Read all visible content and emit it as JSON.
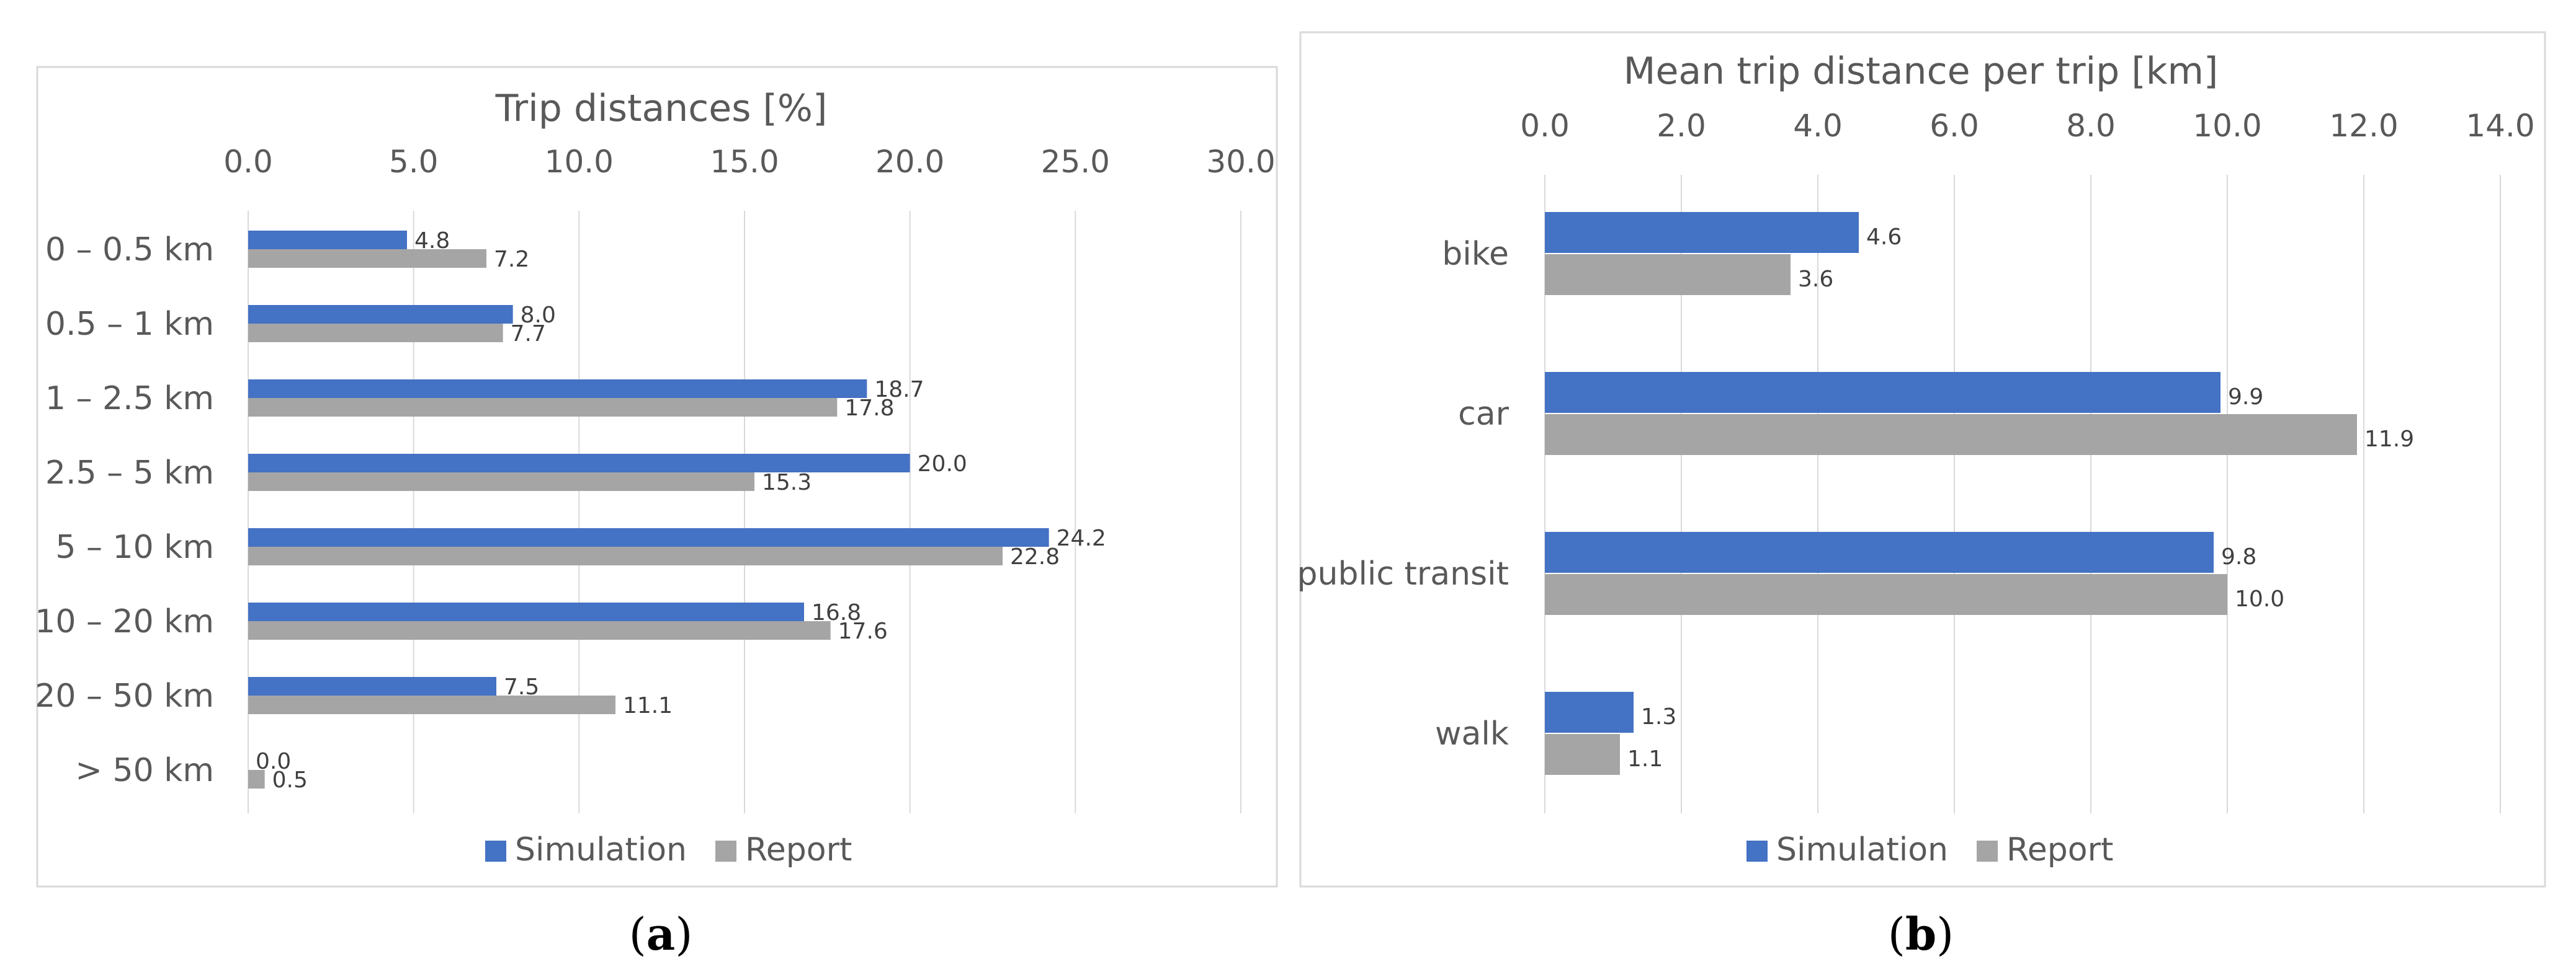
{
  "chart_data": [
    {
      "type": "bar",
      "orientation": "horizontal",
      "title": "Trip distances [%]",
      "xlim": [
        0,
        30
      ],
      "xticks": [
        "0.0",
        "5.0",
        "10.0",
        "15.0",
        "20.0",
        "25.0",
        "30.0"
      ],
      "categories": [
        "0 – 0.5 km",
        "0.5 – 1 km",
        "1 – 2.5 km",
        "2.5 – 5 km",
        "5 – 10 km",
        "10 – 20 km",
        "20 – 50 km",
        "> 50 km"
      ],
      "series": [
        {
          "name": "Simulation",
          "color": "#4472C4",
          "values": [
            4.8,
            8.0,
            18.7,
            20.0,
            24.2,
            16.8,
            7.5,
            0.0
          ],
          "labels": [
            "4.8",
            "8.0",
            "18.7",
            "20.0",
            "24.2",
            "16.8",
            "7.5",
            "0.0"
          ]
        },
        {
          "name": "Report",
          "color": "#A5A5A5",
          "values": [
            7.2,
            7.7,
            17.8,
            15.3,
            22.8,
            17.6,
            11.1,
            0.5
          ],
          "labels": [
            "7.2",
            "7.7",
            "17.8",
            "15.3",
            "22.8",
            "17.6",
            "11.1",
            "0.5"
          ]
        }
      ],
      "legend": "bottom",
      "grid": true,
      "caption_left": "(",
      "caption_letter": "a",
      "caption_right": ")"
    },
    {
      "type": "bar",
      "orientation": "horizontal",
      "title": "Mean trip distance per trip [km]",
      "xlim": [
        0,
        14
      ],
      "xticks": [
        "0.0",
        "2.0",
        "4.0",
        "6.0",
        "8.0",
        "10.0",
        "12.0",
        "14.0"
      ],
      "categories": [
        "bike",
        "car",
        "public transit",
        "walk"
      ],
      "series": [
        {
          "name": "Simulation",
          "color": "#4472C4",
          "values": [
            4.6,
            9.9,
            9.8,
            1.3
          ],
          "labels": [
            "4.6",
            "9.9",
            "9.8",
            "1.3"
          ]
        },
        {
          "name": "Report",
          "color": "#A5A5A5",
          "values": [
            3.6,
            11.9,
            10.0,
            1.1
          ],
          "labels": [
            "3.6",
            "11.9",
            "10.0",
            "1.1"
          ]
        }
      ],
      "legend": "bottom",
      "grid": true,
      "caption_left": "(",
      "caption_letter": "b",
      "caption_right": ")"
    }
  ]
}
